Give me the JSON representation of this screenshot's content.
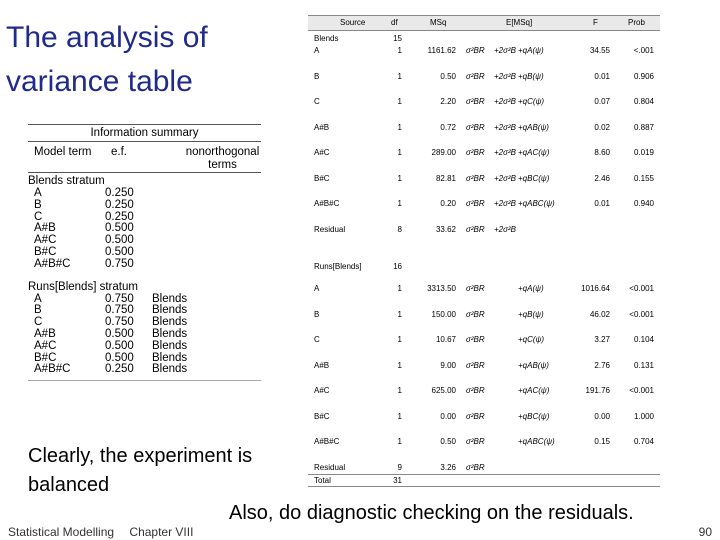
{
  "title": "The analysis of variance table",
  "info_summary": {
    "caption": "Information summary",
    "headers": [
      "Model term",
      "e.f.",
      "nonorthogonal terms"
    ],
    "sections": [
      {
        "name": "Blends stratum",
        "rows": [
          [
            "A",
            "0.250",
            ""
          ],
          [
            "B",
            "0.250",
            ""
          ],
          [
            "C",
            "0.250",
            ""
          ],
          [
            "A#B",
            "0.500",
            ""
          ],
          [
            "A#C",
            "0.500",
            ""
          ],
          [
            "B#C",
            "0.500",
            ""
          ],
          [
            "A#B#C",
            "0.750",
            ""
          ]
        ]
      },
      {
        "name": "Runs[Blends] stratum",
        "rows": [
          [
            "A",
            "0.750",
            "Blends"
          ],
          [
            "B",
            "0.750",
            "Blends"
          ],
          [
            "C",
            "0.750",
            "Blends"
          ],
          [
            "A#B",
            "0.500",
            "Blends"
          ],
          [
            "A#C",
            "0.500",
            "Blends"
          ],
          [
            "B#C",
            "0.500",
            "Blends"
          ],
          [
            "A#B#C",
            "0.250",
            "Blends"
          ]
        ]
      }
    ]
  },
  "anova": {
    "headers": [
      "Source",
      "df",
      "MSq",
      "E[MSq]",
      "F",
      "Prob"
    ],
    "blends_label": "Blends",
    "blends_df": "15",
    "runs_label": "Runs[Blends]",
    "runs_df": "16",
    "blends_rows": [
      {
        "src": "A",
        "df": "1",
        "ms": "1161.62",
        "e1": "σ²BR",
        "e2": "+2σ²B",
        "e3": "+qA(ψ)",
        "f": "34.55",
        "p": "<.001"
      },
      {
        "src": "B",
        "df": "1",
        "ms": "0.50",
        "e1": "σ²BR",
        "e2": "+2σ²B",
        "e3": "+qB(ψ)",
        "f": "0.01",
        "p": "0.906"
      },
      {
        "src": "C",
        "df": "1",
        "ms": "2.20",
        "e1": "σ²BR",
        "e2": "+2σ²B",
        "e3": "+qC(ψ)",
        "f": "0.07",
        "p": "0.804"
      },
      {
        "src": "A#B",
        "df": "1",
        "ms": "0.72",
        "e1": "σ²BR",
        "e2": "+2σ²B",
        "e3": "+qAB(ψ)",
        "f": "0.02",
        "p": "0.887"
      },
      {
        "src": "A#C",
        "df": "1",
        "ms": "289.00",
        "e1": "σ²BR",
        "e2": "+2σ²B",
        "e3": "+qAC(ψ)",
        "f": "8.60",
        "p": "0.019"
      },
      {
        "src": "B#C",
        "df": "1",
        "ms": "82.81",
        "e1": "σ²BR",
        "e2": "+2σ²B",
        "e3": "+qBC(ψ)",
        "f": "2.46",
        "p": "0.155"
      },
      {
        "src": "A#B#C",
        "df": "1",
        "ms": "0.20",
        "e1": "σ²BR",
        "e2": "+2σ²B",
        "e3": "+qABC(ψ)",
        "f": "0.01",
        "p": "0.940"
      },
      {
        "src": "Residual",
        "df": "8",
        "ms": "33.62",
        "e1": "σ²BR",
        "e2": "+2σ²B",
        "e3": "",
        "f": "",
        "p": ""
      }
    ],
    "runs_rows": [
      {
        "src": "A",
        "df": "1",
        "ms": "3313.50",
        "e1": "σ²BR",
        "e2": "",
        "e3": "+qA(ψ)",
        "f": "1016.64",
        "p": "<0.001"
      },
      {
        "src": "B",
        "df": "1",
        "ms": "150.00",
        "e1": "σ²BR",
        "e2": "",
        "e3": "+qB(ψ)",
        "f": "46.02",
        "p": "<0.001"
      },
      {
        "src": "C",
        "df": "1",
        "ms": "10.67",
        "e1": "σ²BR",
        "e2": "",
        "e3": "+qC(ψ)",
        "f": "3.27",
        "p": "0.104"
      },
      {
        "src": "A#B",
        "df": "1",
        "ms": "9.00",
        "e1": "σ²BR",
        "e2": "",
        "e3": "+qAB(ψ)",
        "f": "2.76",
        "p": "0.131"
      },
      {
        "src": "A#C",
        "df": "1",
        "ms": "625.00",
        "e1": "σ²BR",
        "e2": "",
        "e3": "+qAC(ψ)",
        "f": "191.76",
        "p": "<0.001"
      },
      {
        "src": "B#C",
        "df": "1",
        "ms": "0.00",
        "e1": "σ²BR",
        "e2": "",
        "e3": "+qBC(ψ)",
        "f": "0.00",
        "p": "1.000"
      },
      {
        "src": "A#B#C",
        "df": "1",
        "ms": "0.50",
        "e1": "σ²BR",
        "e2": "",
        "e3": "+qABC(ψ)",
        "f": "0.15",
        "p": "0.704"
      },
      {
        "src": "Residual",
        "df": "9",
        "ms": "3.26",
        "e1": "σ²BR",
        "e2": "",
        "e3": "",
        "f": "",
        "p": ""
      }
    ],
    "total_label": "Total",
    "total_df": "31"
  },
  "note1": "Clearly, the experiment is balanced",
  "note2": "Also, do diagnostic checking on the residuals.",
  "footer": {
    "left": "Statistical Modelling",
    "chapter": "Chapter VIII",
    "page": "90"
  }
}
